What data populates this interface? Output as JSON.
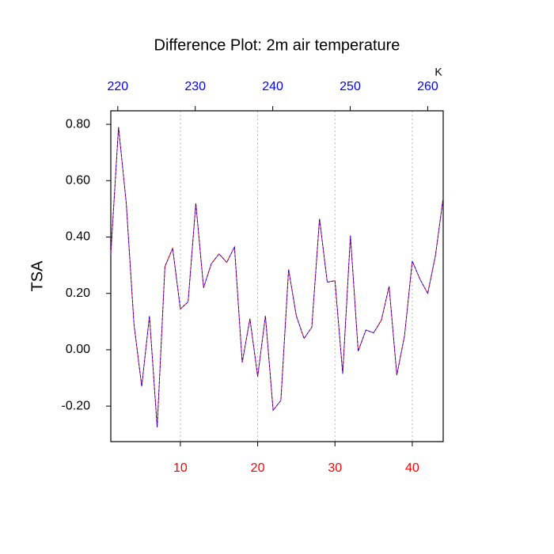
{
  "chart_data": {
    "type": "line",
    "title": "Difference Plot: 2m air temperature",
    "ylabel": "TSA",
    "x2label": "K",
    "x": [
      1,
      2,
      3,
      4,
      5,
      6,
      7,
      8,
      9,
      10,
      11,
      12,
      13,
      14,
      15,
      16,
      17,
      18,
      19,
      20,
      21,
      22,
      23,
      24,
      25,
      26,
      27,
      28,
      29,
      30,
      31,
      32,
      33,
      34,
      35,
      36,
      37,
      38,
      39,
      40,
      41,
      42,
      43,
      44
    ],
    "values": [
      0.34,
      0.79,
      0.52,
      0.09,
      -0.13,
      0.12,
      -0.275,
      0.295,
      0.36,
      0.145,
      0.17,
      0.52,
      0.22,
      0.305,
      0.34,
      0.31,
      0.365,
      -0.045,
      0.11,
      -0.095,
      0.12,
      -0.215,
      -0.18,
      0.285,
      0.12,
      0.04,
      0.08,
      0.465,
      0.24,
      0.245,
      -0.085,
      0.405,
      -0.005,
      0.07,
      0.06,
      0.105,
      0.225,
      -0.09,
      0.05,
      0.315,
      0.25,
      0.2,
      0.335,
      0.54
    ],
    "colors": [
      "#ff0000",
      "#0000ff"
    ],
    "xlim": [
      1,
      44
    ],
    "xticks": [
      10,
      20,
      30,
      40
    ],
    "xtick_color": "#ff0000",
    "x2lim": [
      219.1,
      262.0
    ],
    "x2ticks": [
      220,
      230,
      240,
      250,
      260
    ],
    "x2tick_color": "#0000ff",
    "ylim": [
      -0.326,
      0.848
    ],
    "yticks": [
      {
        "value": -0.2,
        "label": "-0.20"
      },
      {
        "value": 0,
        "label": "0.00"
      },
      {
        "value": 0.2,
        "label": "0.20"
      },
      {
        "value": 0.4,
        "label": "0.40"
      },
      {
        "value": 0.6,
        "label": "0.60"
      },
      {
        "value": 0.8,
        "label": "0.80"
      }
    ],
    "grid": true
  }
}
